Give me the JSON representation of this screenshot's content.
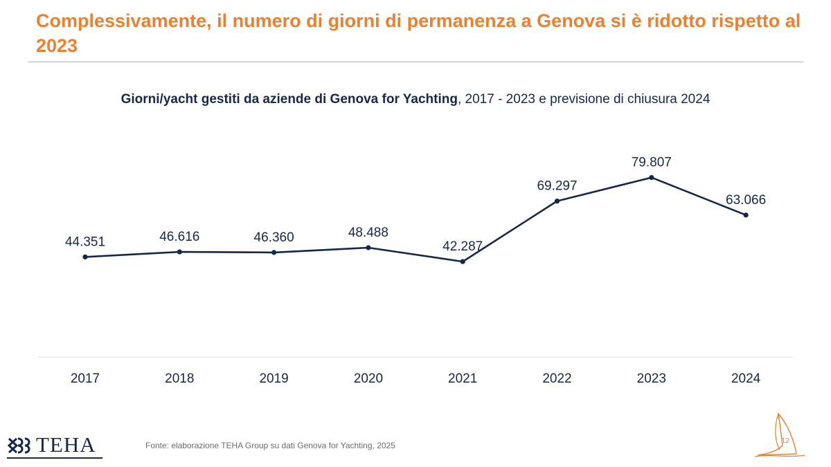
{
  "page": {
    "title": "Complessivamente, il numero di giorni di permanenza a Genova si è ridotto rispetto al 2023",
    "subtitle_bold": "Giorni/yacht gestiti da aziende di Genova for Yachting",
    "subtitle_rest": ", 2017 - 2023 e previsione di chiusura 2024",
    "source": "Fonte: elaborazione TEHA Group su dati Genova for Yachting, 2025",
    "logo_text": "TEHA",
    "page_number": "12"
  },
  "colors": {
    "accent_orange": "#ee7f2d",
    "navy": "#14284b"
  },
  "chart_data": {
    "type": "line",
    "title": "Giorni/yacht gestiti da aziende di Genova for Yachting, 2017 - 2023 e previsione di chiusura 2024",
    "categories": [
      "2017",
      "2018",
      "2019",
      "2020",
      "2021",
      "2022",
      "2023",
      "2024"
    ],
    "values": [
      44351,
      46616,
      46360,
      48488,
      42287,
      69297,
      79807,
      63066
    ],
    "data_labels": [
      "44.351",
      "46.616",
      "46.360",
      "48.488",
      "42.287",
      "69.297",
      "79.807",
      "63.066"
    ],
    "xlabel": "",
    "ylabel": "",
    "y_axis_visible": false,
    "grid": false,
    "ylim": [
      0,
      100000
    ]
  }
}
